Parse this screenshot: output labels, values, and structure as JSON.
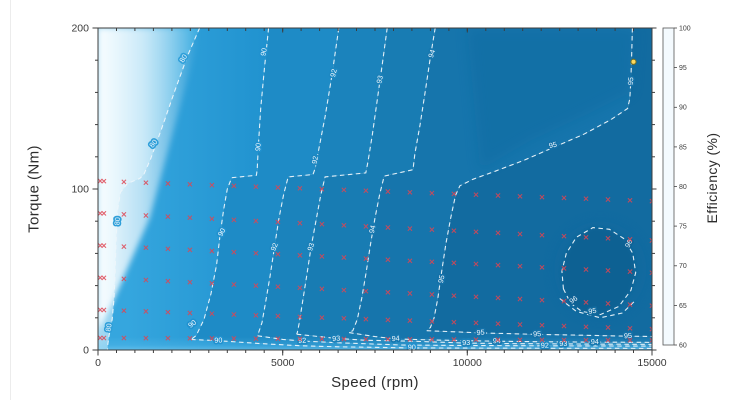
{
  "page": {
    "background": "#ffffff"
  },
  "chart_data": {
    "type": "contour",
    "title": "",
    "xlabel": "Speed (rpm)",
    "ylabel": "Torque (Nm)",
    "colorbar_label": "Efficiency (%)",
    "xlim": [
      0,
      15000
    ],
    "ylim": [
      0,
      200
    ],
    "x_ticks": [
      {
        "value": 0,
        "label": "0"
      },
      {
        "value": 5000,
        "label": "5000"
      },
      {
        "value": 10000,
        "label": "10000"
      },
      {
        "value": 15000,
        "label": "15000"
      }
    ],
    "x_minor_step": 500,
    "y_ticks": [
      {
        "value": 0,
        "label": "0"
      },
      {
        "value": 100,
        "label": "100"
      },
      {
        "value": 200,
        "label": "200"
      }
    ],
    "y_minor_step": 20,
    "colorbar": {
      "min": 60,
      "max": 100,
      "ticks": [
        {
          "value": 100,
          "label": "100"
        },
        {
          "value": 95,
          "label": "95"
        },
        {
          "value": 90,
          "label": "90"
        },
        {
          "value": 85,
          "label": "85"
        },
        {
          "value": 80,
          "label": "80"
        },
        {
          "value": 75,
          "label": "75"
        },
        {
          "value": 70,
          "label": "70"
        },
        {
          "value": 65,
          "label": "65"
        },
        {
          "value": 60,
          "label": "60"
        }
      ],
      "stops": [
        [
          60,
          "#f4fafe"
        ],
        [
          65,
          "#ddeffa"
        ],
        [
          70,
          "#c3e5f7"
        ],
        [
          75,
          "#a0d8f3"
        ],
        [
          80,
          "#7ccaee"
        ],
        [
          85,
          "#49b1e2"
        ],
        [
          90,
          "#2196d5"
        ],
        [
          95,
          "#1371aa"
        ],
        [
          100,
          "#0e5c8e"
        ]
      ]
    },
    "band_colors": {
      "b0_left": [
        "#a5daf3",
        "#3aabe0"
      ],
      "b1": [
        "#35a6de",
        "#2092cf"
      ],
      "b2": "#1e8bc6",
      "b3": "#1b83bc",
      "b4": "#187cb3",
      "b5": "#1675ac",
      "b6": "#126ba0",
      "loop96": "#0d6092",
      "dark_patch": "#0f689e"
    },
    "contours": [
      {
        "level": 80,
        "halo": "#2f9fd9",
        "main": [
          [
            2750,
            200
          ],
          [
            2430,
            183
          ],
          [
            2080,
            161
          ],
          [
            1730,
            138
          ],
          [
            1430,
            119
          ],
          [
            1240,
            109
          ],
          [
            1130,
            106.5
          ],
          [
            800,
            103.5
          ],
          [
            610,
            98
          ],
          [
            530,
            87
          ],
          [
            490,
            68
          ],
          [
            462,
            48
          ],
          [
            432,
            32
          ],
          [
            385,
            19
          ],
          [
            300,
            9
          ],
          [
            262,
            3
          ],
          [
            258,
            0
          ]
        ],
        "labels": [
          [
            2320,
            181,
            -57
          ],
          [
            1510,
            128,
            -50
          ],
          [
            535,
            80,
            -86
          ],
          [
            300,
            14,
            -80
          ]
        ]
      },
      {
        "level": 90,
        "halo": "#2091cf",
        "main": [
          [
            4620,
            200
          ],
          [
            4510,
            176
          ],
          [
            4405,
            150
          ],
          [
            4340,
            126
          ],
          [
            4310,
            112
          ],
          [
            4290,
            108.5
          ],
          [
            3620,
            107
          ],
          [
            3500,
            100
          ],
          [
            3400,
            87
          ],
          [
            3310,
            72
          ],
          [
            3210,
            53
          ],
          [
            3060,
            35
          ],
          [
            2870,
            19
          ],
          [
            2660,
            9
          ],
          [
            2520,
            6.5
          ]
        ],
        "bundle": [
          [
            2520,
            6.5
          ],
          [
            3260,
            5.8
          ],
          [
            4400,
            4
          ],
          [
            5500,
            2.6
          ],
          [
            6500,
            2
          ],
          [
            8500,
            1.3
          ],
          [
            11000,
            1.1
          ],
          [
            15000,
            1
          ]
        ],
        "labels": [
          [
            4500,
            185,
            -78
          ],
          [
            4345,
            126,
            -84
          ],
          [
            3360,
            73,
            -62
          ],
          [
            2560,
            16,
            -38
          ],
          [
            3260,
            5.8,
            -3
          ],
          [
            8500,
            1.4,
            -1
          ]
        ]
      },
      {
        "level": 92,
        "halo": "#1d88c2",
        "main": [
          [
            6520,
            200
          ],
          [
            6330,
            170
          ],
          [
            6150,
            145
          ],
          [
            5990,
            126
          ],
          [
            5880,
            113
          ],
          [
            5820,
            109
          ],
          [
            5150,
            107.5
          ],
          [
            5030,
            97
          ],
          [
            4900,
            82
          ],
          [
            4780,
            64
          ],
          [
            4660,
            46
          ],
          [
            4540,
            30
          ],
          [
            4440,
            17
          ],
          [
            4350,
            11
          ],
          [
            4320,
            8.8
          ]
        ],
        "bundle": [
          [
            4320,
            8.8
          ],
          [
            5000,
            6.6
          ],
          [
            5530,
            5.6
          ],
          [
            6600,
            4.4
          ],
          [
            8200,
            3.1
          ],
          [
            10000,
            2.8
          ],
          [
            12100,
            2.6
          ],
          [
            15000,
            2.4
          ]
        ],
        "labels": [
          [
            6390,
            172,
            -76
          ],
          [
            5890,
            118,
            -80
          ],
          [
            4785,
            64,
            -68
          ],
          [
            5530,
            5.6,
            -4
          ],
          [
            12100,
            2.6,
            -1
          ]
        ]
      },
      {
        "level": 93,
        "halo": "#1a80b9",
        "main": [
          [
            7830,
            200
          ],
          [
            7700,
            178
          ],
          [
            7560,
            155
          ],
          [
            7430,
            134
          ],
          [
            7310,
            117
          ],
          [
            7250,
            110
          ],
          [
            6150,
            107.5
          ],
          [
            6030,
            96
          ],
          [
            5900,
            80
          ],
          [
            5770,
            64
          ],
          [
            5650,
            46
          ],
          [
            5540,
            30
          ],
          [
            5450,
            17
          ],
          [
            5400,
            11
          ],
          [
            5380,
            9.8
          ]
        ],
        "bundle": [
          [
            5380,
            9.8
          ],
          [
            6400,
            7.3
          ],
          [
            7200,
            6.1
          ],
          [
            8600,
            5.4
          ],
          [
            9970,
            4.3
          ],
          [
            11150,
            4
          ],
          [
            13000,
            3.7
          ],
          [
            15000,
            3.5
          ]
        ],
        "labels": [
          [
            7640,
            168,
            -76
          ],
          [
            5775,
            64,
            -72
          ],
          [
            6450,
            6.9,
            -4
          ],
          [
            9970,
            4.3,
            -1
          ],
          [
            12600,
            3.7,
            -1
          ]
        ]
      },
      {
        "level": 94,
        "halo": "#1778b0",
        "main": [
          [
            9130,
            200
          ],
          [
            9000,
            182
          ],
          [
            8870,
            162
          ],
          [
            8720,
            140
          ],
          [
            8580,
            122
          ],
          [
            8530,
            112
          ],
          [
            7750,
            108
          ],
          [
            7630,
            97
          ],
          [
            7500,
            82
          ],
          [
            7380,
            66
          ],
          [
            7260,
            48
          ],
          [
            7140,
            32
          ],
          [
            7020,
            19
          ],
          [
            6900,
            12
          ],
          [
            6800,
            10.8
          ]
        ],
        "bundle": [
          [
            6800,
            10.8
          ],
          [
            7500,
            8.3
          ],
          [
            8060,
            6.9
          ],
          [
            9100,
            6.2
          ],
          [
            10600,
            5.5
          ],
          [
            12100,
            5.1
          ],
          [
            13450,
            4.9
          ],
          [
            15000,
            4.7
          ]
        ],
        "labels": [
          [
            9050,
            184,
            -72
          ],
          [
            7440,
            75,
            -77
          ],
          [
            8060,
            6.9,
            -4
          ],
          [
            10800,
            5.4,
            -1
          ],
          [
            13450,
            4.9,
            -1
          ]
        ]
      },
      {
        "level": 95,
        "halo": "#1471a9",
        "main": [
          [
            14470,
            200
          ],
          [
            14450,
            184
          ],
          [
            14430,
            168
          ],
          [
            14400,
            156
          ],
          [
            14340,
            150
          ],
          [
            13880,
            143
          ],
          [
            13150,
            134
          ],
          [
            12350,
            126
          ],
          [
            11550,
            118
          ],
          [
            10750,
            111
          ],
          [
            10150,
            106
          ],
          [
            9800,
            102
          ],
          [
            9680,
            96
          ],
          [
            9550,
            82
          ],
          [
            9420,
            66
          ],
          [
            9300,
            48
          ],
          [
            9200,
            32
          ],
          [
            9100,
            20
          ],
          [
            9000,
            14
          ],
          [
            8900,
            12
          ]
        ],
        "bundle": [
          [
            8900,
            12
          ],
          [
            9800,
            11.2
          ],
          [
            10360,
            10.6
          ],
          [
            11200,
            10.1
          ],
          [
            11890,
            9.7
          ],
          [
            13100,
            9.2
          ],
          [
            14100,
            8.7
          ],
          [
            15000,
            8.4
          ]
        ],
        "labels": [
          [
            14435,
            167,
            -86
          ],
          [
            12320,
            127,
            -13
          ],
          [
            9310,
            44,
            -77
          ],
          [
            10360,
            10.6,
            -4
          ],
          [
            11890,
            9.7,
            -3
          ],
          [
            14350,
            8.6,
            -4
          ]
        ]
      }
    ],
    "closed_contours": [
      {
        "level": 96,
        "halo": "#0e6195",
        "pts": [
          [
            12600,
            38
          ],
          [
            12800,
            29
          ],
          [
            13100,
            24
          ],
          [
            13600,
            22
          ],
          [
            14100,
            27
          ],
          [
            14430,
            37
          ],
          [
            14560,
            48
          ],
          [
            14480,
            60
          ],
          [
            14250,
            69
          ],
          [
            13850,
            75
          ],
          [
            13400,
            76
          ],
          [
            12950,
            70
          ],
          [
            12680,
            60
          ],
          [
            12560,
            49
          ],
          [
            12600,
            38
          ]
        ],
        "labels": [
          [
            12880,
            31,
            -35
          ],
          [
            14380,
            66,
            -65
          ]
        ]
      },
      {
        "level": 95,
        "halo": "#116a9e",
        "pts": [
          [
            12500,
            32
          ],
          [
            12950,
            24
          ],
          [
            13600,
            20
          ],
          [
            14200,
            23
          ],
          [
            14560,
            31
          ]
        ],
        "labels": [
          [
            13390,
            24,
            -8
          ]
        ]
      }
    ],
    "test_points": {
      "marker": "x",
      "color": "#df4552",
      "special_speeds": [
        60,
        160
      ],
      "speed_start": 700,
      "speed_end": 15000,
      "speed_count": 25,
      "rows": [
        {
          "t_left": 105,
          "t_right": 92.5
        },
        {
          "t_left": 85,
          "t_right": 68
        },
        {
          "t_left": 65,
          "t_right": 48
        },
        {
          "t_left": 45,
          "t_right": 27.5
        },
        {
          "t_left": 25,
          "t_right": 13
        },
        {
          "t_left": 7.5,
          "t_right": 6
        }
      ]
    },
    "peak_point": {
      "speed": 14500,
      "torque": 179,
      "fill": "#ffda5e",
      "stroke": "#6f6f28"
    }
  }
}
